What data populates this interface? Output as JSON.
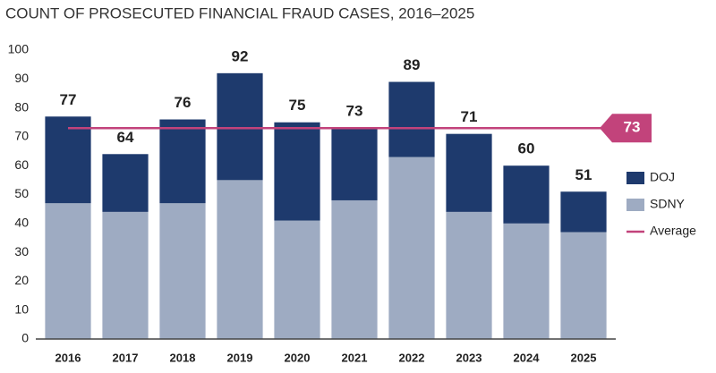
{
  "chart_data": {
    "type": "stacked_bar",
    "title": "COUNT OF PROSECUTED FINANCIAL FRAUD CASES, 2016–2025",
    "categories": [
      "2016",
      "2017",
      "2018",
      "2019",
      "2020",
      "2021",
      "2022",
      "2023",
      "2024",
      "2025"
    ],
    "series": [
      {
        "name": "SDNY",
        "color": "#9eabc2",
        "values": [
          47,
          44,
          47,
          55,
          41,
          48,
          63,
          44,
          40,
          37
        ]
      },
      {
        "name": "DOJ",
        "color": "#1e3a6d",
        "values": [
          30,
          20,
          29,
          37,
          34,
          25,
          26,
          27,
          20,
          14
        ]
      }
    ],
    "totals": [
      77,
      64,
      76,
      92,
      75,
      73,
      89,
      71,
      60,
      51
    ],
    "average": {
      "name": "Average",
      "value": 73,
      "color": "#c2437b"
    },
    "ylim": [
      0,
      100
    ],
    "yticks": [
      0,
      10,
      20,
      30,
      40,
      50,
      60,
      70,
      80,
      90,
      100
    ],
    "grid": false
  }
}
